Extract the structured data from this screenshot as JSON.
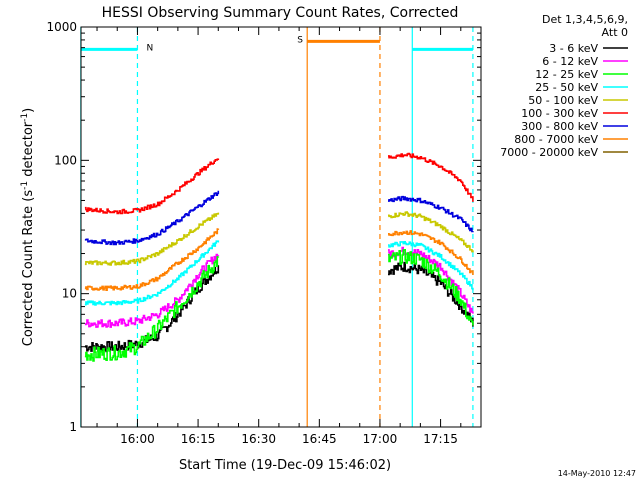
{
  "chart_data": {
    "type": "line",
    "title": "HESSI Observing Summary Count Rates, Corrected",
    "xlabel": "Start Time (19-Dec-09 15:46:02)",
    "ylabel": "Corrected Count Rate (s",
    "ylabel_sup1": "-1",
    "ylabel_mid": " detector",
    "ylabel_sup2": "-1",
    "ylabel_end": ")",
    "y_scale": "log",
    "ylim": [
      1,
      1000
    ],
    "xlim": [
      "15:46:02",
      "17:25:00"
    ],
    "x_ticks": [
      "16:00",
      "16:15",
      "16:30",
      "16:45",
      "17:00",
      "17:15"
    ],
    "y_ticks": [
      "1",
      "10",
      "100",
      "1000"
    ],
    "legend_header": [
      "Det 1,3,4,5,6,9,",
      "Att 0"
    ],
    "legend_placement": "right",
    "series": [
      {
        "name": "3 - 6 keV",
        "color": "#000000",
        "x": [
          "15:47",
          "15:55",
          "16:00",
          "16:05",
          "16:10",
          "16:15",
          "16:20",
          "17:02",
          "17:06",
          "17:10",
          "17:15",
          "17:20",
          "17:23"
        ],
        "y": [
          4,
          4,
          4.2,
          4.8,
          7,
          11,
          16,
          15,
          16,
          15,
          12,
          8,
          6
        ]
      },
      {
        "name": "6 - 12 keV",
        "color": "#ff00ff",
        "x": [
          "15:47",
          "15:55",
          "16:00",
          "16:05",
          "16:10",
          "16:15",
          "16:20",
          "17:02",
          "17:06",
          "17:10",
          "17:15",
          "17:20",
          "17:23"
        ],
        "y": [
          6,
          6,
          6.2,
          7,
          9,
          14,
          20,
          20,
          21,
          20,
          16,
          10,
          7
        ]
      },
      {
        "name": "12 - 25 keV",
        "color": "#00ff00",
        "x": [
          "15:47",
          "15:55",
          "16:00",
          "16:05",
          "16:10",
          "16:15",
          "16:20",
          "17:02",
          "17:06",
          "17:10",
          "17:15",
          "17:20",
          "17:23"
        ],
        "y": [
          3.5,
          3.6,
          4,
          5.5,
          8,
          12,
          18,
          18,
          19,
          18,
          14,
          9,
          5.5
        ]
      },
      {
        "name": "25 - 50 keV",
        "color": "#00ffff",
        "x": [
          "15:47",
          "15:55",
          "16:00",
          "16:05",
          "16:10",
          "16:15",
          "16:20",
          "17:02",
          "17:06",
          "17:10",
          "17:15",
          "17:20",
          "17:23"
        ],
        "y": [
          8.5,
          8.5,
          8.8,
          10,
          13,
          18,
          25,
          23,
          24,
          23,
          19,
          14,
          11
        ]
      },
      {
        "name": "50 - 100 keV",
        "color": "#c8c800",
        "x": [
          "15:47",
          "15:55",
          "16:00",
          "16:05",
          "16:10",
          "16:15",
          "16:20",
          "17:02",
          "17:06",
          "17:10",
          "17:15",
          "17:20",
          "17:23"
        ],
        "y": [
          17,
          17,
          17.5,
          20,
          25,
          32,
          40,
          38,
          40,
          38,
          32,
          25,
          21
        ]
      },
      {
        "name": "100 - 300 keV",
        "color": "#ff0000",
        "x": [
          "15:47",
          "15:55",
          "16:00",
          "16:05",
          "16:10",
          "16:15",
          "16:20",
          "17:02",
          "17:06",
          "17:10",
          "17:15",
          "17:20",
          "17:23"
        ],
        "y": [
          43,
          41,
          42,
          47,
          60,
          80,
          105,
          105,
          110,
          105,
          90,
          70,
          50
        ]
      },
      {
        "name": "300 - 800 keV",
        "color": "#0000dd",
        "x": [
          "15:47",
          "15:55",
          "16:00",
          "16:05",
          "16:10",
          "16:15",
          "16:20",
          "17:02",
          "17:06",
          "17:10",
          "17:15",
          "17:20",
          "17:23"
        ],
        "y": [
          25,
          24,
          25,
          28,
          35,
          45,
          58,
          50,
          52,
          50,
          44,
          36,
          29
        ]
      },
      {
        "name": "800 - 7000 keV",
        "color": "#ff8000",
        "x": [
          "15:47",
          "15:55",
          "16:00",
          "16:05",
          "16:10",
          "16:15",
          "16:20",
          "17:02",
          "17:06",
          "17:10",
          "17:15",
          "17:20",
          "17:23"
        ],
        "y": [
          11,
          11,
          11.3,
          13,
          17,
          22,
          30,
          28,
          29,
          28,
          24,
          18,
          14
        ]
      },
      {
        "name": "7000 - 20000 keV",
        "color": "#806000",
        "x": [],
        "y": []
      }
    ],
    "intervals": [
      {
        "label": "N",
        "color": "#00ffff",
        "start": "15:46",
        "end": "16:00",
        "level": 680
      },
      {
        "label": "S",
        "color": "#ff8000",
        "start": "16:42",
        "end": "17:00",
        "level": 780
      },
      {
        "label": "",
        "color": "#00ffff",
        "start": "17:08",
        "end": "17:23",
        "level": 680
      }
    ],
    "vlines": [
      {
        "x": "15:46",
        "color": "#00ffff",
        "style": "solid"
      },
      {
        "x": "16:00",
        "color": "#00ffff",
        "style": "dashed"
      },
      {
        "x": "16:42",
        "color": "#ff8000",
        "style": "solid"
      },
      {
        "x": "17:00",
        "color": "#ff8000",
        "style": "dashed"
      },
      {
        "x": "17:08",
        "color": "#00ffff",
        "style": "solid"
      },
      {
        "x": "17:23",
        "color": "#00ffff",
        "style": "dashed"
      }
    ]
  },
  "footer_date": "14-May-2010 12:47"
}
